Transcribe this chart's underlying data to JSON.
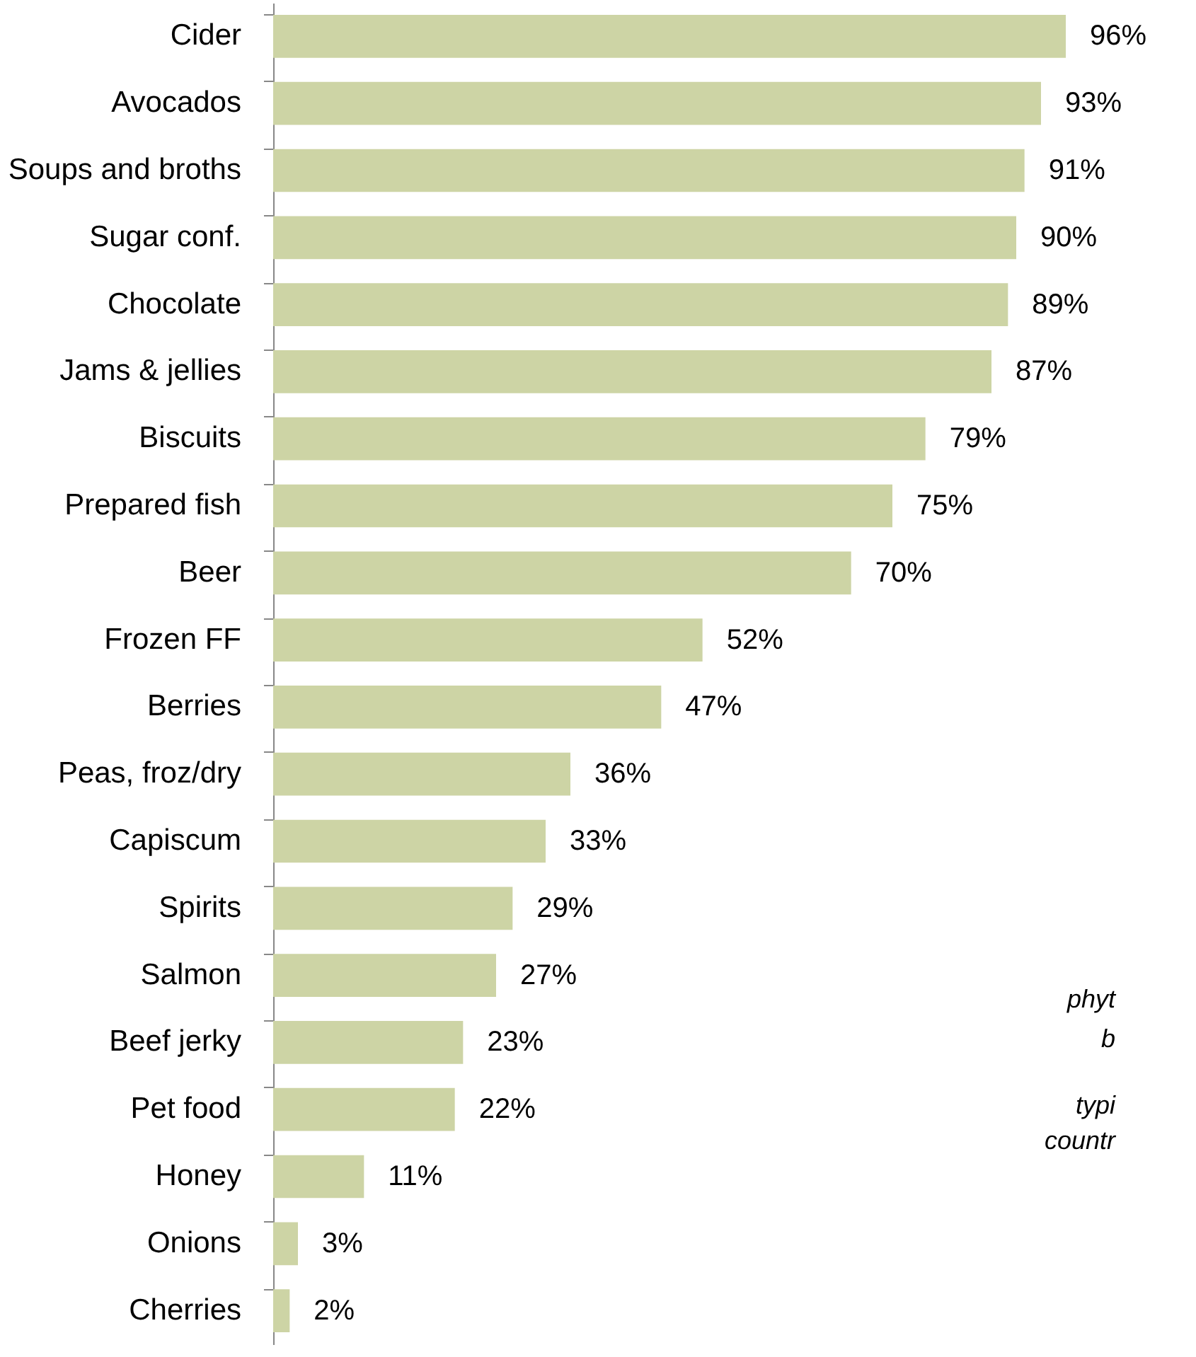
{
  "chart_data": {
    "type": "bar",
    "orientation": "horizontal",
    "grid": false,
    "categories": [
      "Cider",
      "Avocados",
      "Soups and broths",
      "Sugar conf.",
      "Chocolate",
      "Jams & jellies",
      "Biscuits",
      "Prepared fish",
      "Beer",
      "Frozen FF",
      "Berries",
      "Peas, froz/dry",
      "Capiscum",
      "Spirits",
      "Salmon",
      "Beef jerky",
      "Pet food",
      "Honey",
      "Onions",
      "Cherries"
    ],
    "values": [
      96,
      93,
      91,
      90,
      89,
      87,
      79,
      75,
      70,
      52,
      47,
      36,
      33,
      29,
      27,
      23,
      22,
      11,
      3,
      2
    ],
    "value_labels": [
      "96%",
      "93%",
      "91%",
      "90%",
      "89%",
      "87%",
      "79%",
      "75%",
      "70%",
      "52%",
      "47%",
      "36%",
      "33%",
      "29%",
      "27%",
      "23%",
      "22%",
      "11%",
      "3%",
      "2%"
    ],
    "color": "#cdd4a5",
    "annotations": [
      "phyt",
      "b",
      "typi",
      "countr"
    ]
  }
}
